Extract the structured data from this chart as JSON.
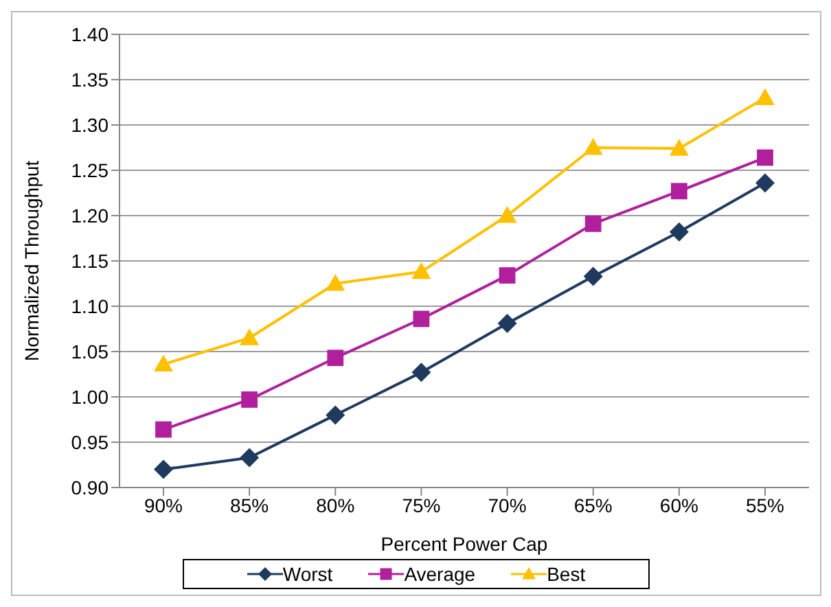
{
  "chart_data": {
    "type": "line",
    "xlabel": "Percent Power Cap",
    "ylabel": "Normalized Throughput",
    "categories": [
      "90%",
      "85%",
      "80%",
      "75%",
      "70%",
      "65%",
      "60%",
      "55%"
    ],
    "series": [
      {
        "name": "Worst",
        "color": "#1f3a5f",
        "marker": "diamond",
        "values": [
          0.92,
          0.933,
          0.98,
          1.027,
          1.081,
          1.133,
          1.182,
          1.236
        ]
      },
      {
        "name": "Average",
        "color": "#b0209c",
        "marker": "square",
        "values": [
          0.964,
          0.997,
          1.043,
          1.086,
          1.134,
          1.191,
          1.227,
          1.264
        ]
      },
      {
        "name": "Best",
        "color": "#ffc000",
        "marker": "triangle",
        "values": [
          1.036,
          1.065,
          1.125,
          1.138,
          1.2,
          1.275,
          1.274,
          1.33
        ]
      }
    ],
    "ylim": [
      0.9,
      1.4
    ],
    "yticks": [
      {
        "value": 0.9,
        "label": "0.90"
      },
      0.95,
      {
        "value": 1.0,
        "label": "1.00"
      },
      1.05,
      {
        "value": 1.1,
        "label": "1.10"
      },
      1.15,
      {
        "value": 1.2,
        "label": "1.20"
      },
      1.25,
      {
        "value": 1.3,
        "label": "1.30"
      },
      1.35,
      {
        "value": 1.4,
        "label": "1.40"
      }
    ],
    "grid": "y",
    "legend": "bottom",
    "line_style": "solid"
  }
}
